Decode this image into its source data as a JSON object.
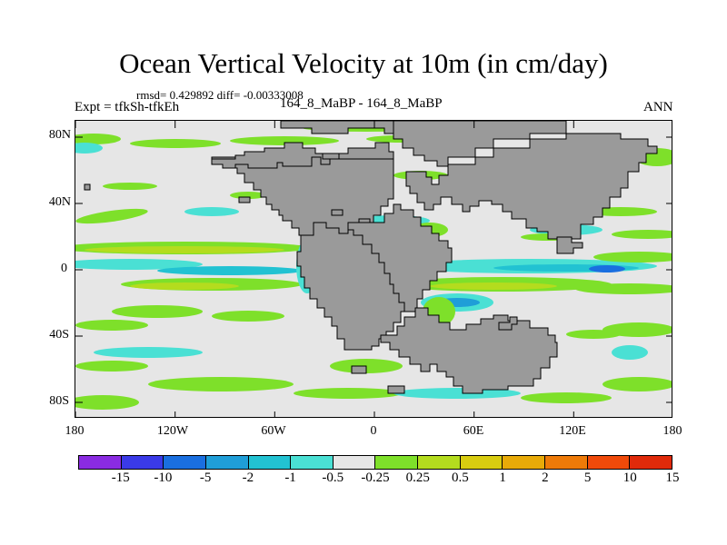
{
  "title": "Ocean Vertical Velocity at 10m (in cm/day)",
  "stats_line": "rmsd= 0.429892 diff= -0.00333008",
  "expt_label": "Expt = tfkSh-tfkEh",
  "experiment_label": "164_8_MaBP - 164_8_MaBP",
  "season": "ANN",
  "lat_ticks": [
    "80N",
    "40N",
    "0",
    "40S",
    "80S"
  ],
  "lon_ticks": [
    "180",
    "120W",
    "60W",
    "0",
    "60E",
    "120E",
    "180"
  ],
  "colorbar": {
    "colors": [
      "#8a2be2",
      "#3a3ae8",
      "#1a6fe0",
      "#1f9ed8",
      "#22c2d2",
      "#4ae0d4",
      "#e6e6e6",
      "#7ee02a",
      "#b4dc1e",
      "#d8cc10",
      "#e8aa08",
      "#ee7a08",
      "#f04a0a",
      "#e02a0a"
    ],
    "levels": [
      "-15",
      "-10",
      "-5",
      "-2",
      "-1",
      "-0.5",
      "-0.25",
      "0.25",
      "0.5",
      "1",
      "2",
      "5",
      "10",
      "15"
    ]
  },
  "colors": {
    "land": "#9a9a9a",
    "ocean_neutral": "#e6e6e6",
    "pos_weak": "#7ee02a",
    "pos_mid": "#b4dc1e",
    "pos_strong": "#d8cc10",
    "neg_weak": "#4ae0d4",
    "neg_mid": "#22c2d2",
    "neg_strong": "#1f9ed8",
    "neg_deep": "#1a6fe0"
  }
}
